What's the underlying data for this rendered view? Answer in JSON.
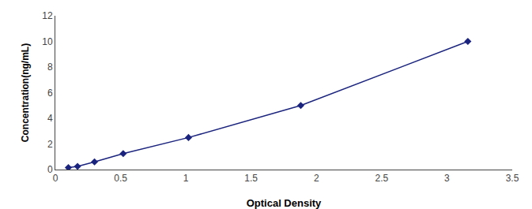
{
  "chart_data": {
    "type": "line",
    "x": [
      0.1,
      0.17,
      0.3,
      0.52,
      1.02,
      1.88,
      3.16
    ],
    "values": [
      0.15,
      0.25,
      0.6,
      1.25,
      2.5,
      5.0,
      10.0
    ],
    "color": "#1a237e",
    "marker": "diamond",
    "line_style": "solid",
    "xlabel": "Optical Density",
    "ylabel": "Concentration(ng/mL)",
    "xlim": [
      0,
      3.5
    ],
    "ylim": [
      0,
      12
    ],
    "xticks": [
      0,
      0.5,
      1.0,
      1.5,
      2.0,
      2.5,
      3.0,
      3.5
    ],
    "yticks": [
      0,
      2,
      4,
      6,
      8,
      10,
      12
    ],
    "grid": false
  }
}
